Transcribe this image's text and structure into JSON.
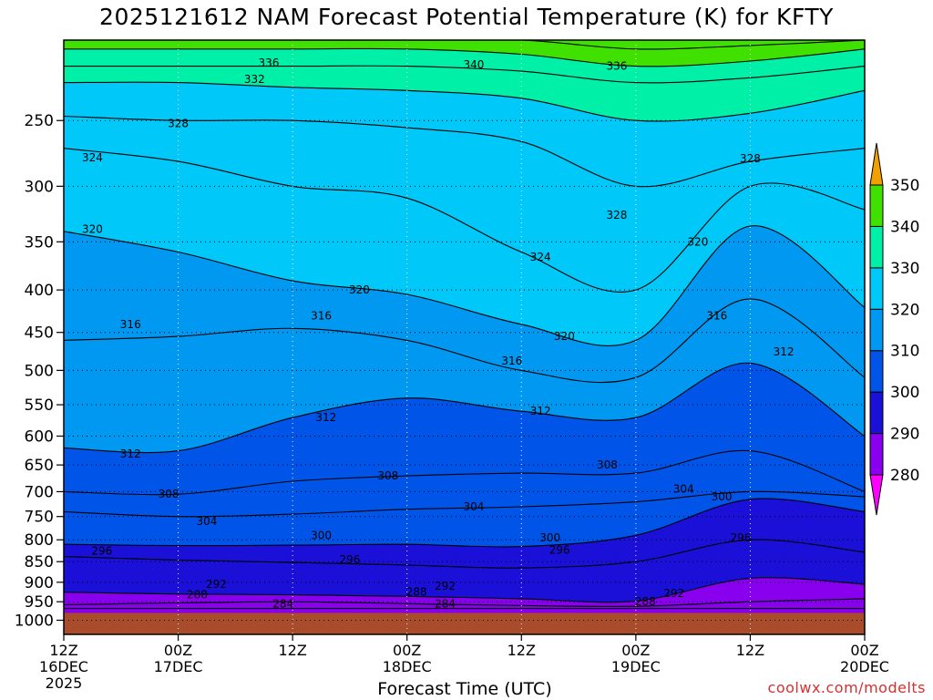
{
  "chart_data": {
    "type": "heatmap",
    "title": "2025121612 NAM Forecast Potential Temperature (K) for KFTY",
    "xlabel": "Forecast Time (UTC)",
    "ylabel": "",
    "y_scale": "log",
    "y_inverted": true,
    "ylim": [
      1040,
      200
    ],
    "y_ticks": [
      250,
      300,
      350,
      400,
      450,
      500,
      550,
      600,
      650,
      700,
      750,
      800,
      850,
      900,
      950,
      1000
    ],
    "x_ticks": [
      {
        "hour": 0,
        "label1": "12Z",
        "label2": "16DEC",
        "label3": "2025"
      },
      {
        "hour": 12,
        "label1": "00Z",
        "label2": "17DEC",
        "label3": ""
      },
      {
        "hour": 24,
        "label1": "12Z",
        "label2": "",
        "label3": ""
      },
      {
        "hour": 36,
        "label1": "00Z",
        "label2": "18DEC",
        "label3": ""
      },
      {
        "hour": 48,
        "label1": "12Z",
        "label2": "",
        "label3": ""
      },
      {
        "hour": 60,
        "label1": "00Z",
        "label2": "19DEC",
        "label3": ""
      },
      {
        "hour": 72,
        "label1": "12Z",
        "label2": "",
        "label3": ""
      },
      {
        "hour": 84,
        "label1": "00Z",
        "label2": "20DEC",
        "label3": ""
      }
    ],
    "colorbar": {
      "levels": [
        280,
        290,
        300,
        310,
        320,
        330,
        340,
        350
      ],
      "colors": [
        "#ff00ff",
        "#8800ee",
        "#1a10d8",
        "#0055e8",
        "#0098f0",
        "#00c8f8",
        "#00f0a8",
        "#40e000",
        "#f0f000",
        "#f0a000"
      ],
      "labels": [
        "280",
        "290",
        "300",
        "310",
        "320",
        "330",
        "340",
        "350"
      ]
    },
    "grid": true,
    "isentropes": [
      {
        "theta": 284,
        "pressure": [
          968,
          968,
          968,
          968,
          968,
          968,
          968,
          968
        ]
      },
      {
        "theta": 288,
        "pressure": [
          958,
          953,
          950,
          955,
          960,
          962,
          950,
          942
        ]
      },
      {
        "theta": 292,
        "pressure": [
          925,
          930,
          932,
          936,
          942,
          948,
          890,
          905
        ]
      },
      {
        "theta": 296,
        "pressure": [
          838,
          846,
          852,
          858,
          865,
          850,
          800,
          828
        ]
      },
      {
        "theta": 300,
        "pressure": [
          810,
          813,
          812,
          810,
          815,
          790,
          715,
          740
        ]
      },
      {
        "theta": 304,
        "pressure": [
          740,
          750,
          745,
          735,
          730,
          720,
          700,
          710
        ]
      },
      {
        "theta": 308,
        "pressure": [
          700,
          705,
          680,
          670,
          665,
          665,
          625,
          700
        ]
      },
      {
        "theta": 312,
        "pressure": [
          620,
          625,
          570,
          540,
          560,
          570,
          490,
          600
        ]
      },
      {
        "theta": 316,
        "pressure": [
          460,
          455,
          445,
          460,
          500,
          510,
          410,
          510
        ]
      },
      {
        "theta": 320,
        "pressure": [
          340,
          360,
          390,
          405,
          440,
          460,
          335,
          420
        ]
      },
      {
        "theta": 324,
        "pressure": [
          270,
          280,
          300,
          310,
          360,
          400,
          300,
          320
        ]
      },
      {
        "theta": 328,
        "pressure": [
          247,
          250,
          250,
          255,
          265,
          300,
          280,
          270
        ]
      },
      {
        "theta": 332,
        "pressure": [
          225,
          225,
          228,
          230,
          235,
          250,
          245,
          230
        ]
      },
      {
        "theta": 336,
        "pressure": [
          215,
          215,
          215,
          215,
          218,
          225,
          222,
          215
        ]
      },
      {
        "theta": 340,
        "pressure": [
          205,
          205,
          205,
          205,
          208,
          215,
          212,
          205
        ]
      },
      {
        "theta": 344,
        "pressure": [
          200,
          200,
          200,
          200,
          200,
          205,
          203,
          200
        ]
      }
    ],
    "isentrope_hours": [
      0,
      12,
      24,
      36,
      48,
      60,
      72,
      84
    ],
    "contour_labels": [
      {
        "text": "336",
        "hour": 21.5,
        "pressure": 213
      },
      {
        "text": "332",
        "hour": 20.0,
        "pressure": 223
      },
      {
        "text": "340",
        "hour": 43.0,
        "pressure": 214
      },
      {
        "text": "336",
        "hour": 58.0,
        "pressure": 215
      },
      {
        "text": "328",
        "hour": 12.0,
        "pressure": 252
      },
      {
        "text": "328",
        "hour": 72.0,
        "pressure": 278
      },
      {
        "text": "324",
        "hour": 3.0,
        "pressure": 277
      },
      {
        "text": "328",
        "hour": 58.0,
        "pressure": 325
      },
      {
        "text": "324",
        "hour": 50.0,
        "pressure": 365
      },
      {
        "text": "320",
        "hour": 3.0,
        "pressure": 338
      },
      {
        "text": "320",
        "hour": 66.5,
        "pressure": 350
      },
      {
        "text": "320",
        "hour": 31.0,
        "pressure": 400
      },
      {
        "text": "320",
        "hour": 52.5,
        "pressure": 455
      },
      {
        "text": "316",
        "hour": 7.0,
        "pressure": 440
      },
      {
        "text": "316",
        "hour": 27.0,
        "pressure": 430
      },
      {
        "text": "316",
        "hour": 68.5,
        "pressure": 430
      },
      {
        "text": "316",
        "hour": 47.0,
        "pressure": 487
      },
      {
        "text": "312",
        "hour": 75.5,
        "pressure": 475
      },
      {
        "text": "312",
        "hour": 27.5,
        "pressure": 570
      },
      {
        "text": "312",
        "hour": 50.0,
        "pressure": 560
      },
      {
        "text": "312",
        "hour": 7.0,
        "pressure": 630
      },
      {
        "text": "308",
        "hour": 34.0,
        "pressure": 670
      },
      {
        "text": "308",
        "hour": 57.0,
        "pressure": 650
      },
      {
        "text": "308",
        "hour": 11.0,
        "pressure": 705
      },
      {
        "text": "304",
        "hour": 65.0,
        "pressure": 695
      },
      {
        "text": "304",
        "hour": 43.0,
        "pressure": 730
      },
      {
        "text": "304",
        "hour": 15.0,
        "pressure": 760
      },
      {
        "text": "300",
        "hour": 69.0,
        "pressure": 710
      },
      {
        "text": "300",
        "hour": 27.0,
        "pressure": 790
      },
      {
        "text": "300",
        "hour": 51.0,
        "pressure": 795
      },
      {
        "text": "296",
        "hour": 71.0,
        "pressure": 795
      },
      {
        "text": "296",
        "hour": 4.0,
        "pressure": 825
      },
      {
        "text": "296",
        "hour": 30.0,
        "pressure": 845
      },
      {
        "text": "296",
        "hour": 52.0,
        "pressure": 823
      },
      {
        "text": "292",
        "hour": 16.0,
        "pressure": 905
      },
      {
        "text": "292",
        "hour": 40.0,
        "pressure": 910
      },
      {
        "text": "292",
        "hour": 64.0,
        "pressure": 928
      },
      {
        "text": "288",
        "hour": 14.0,
        "pressure": 932
      },
      {
        "text": "288",
        "hour": 37.0,
        "pressure": 925
      },
      {
        "text": "288",
        "hour": 61.0,
        "pressure": 950
      },
      {
        "text": "284",
        "hour": 23.0,
        "pressure": 955
      },
      {
        "text": "284",
        "hour": 40.0,
        "pressure": 955
      }
    ],
    "ground_pressure": 980,
    "ground_color": "#a84c2c"
  },
  "footer": {
    "credit": "coolwx.com/modelts"
  }
}
